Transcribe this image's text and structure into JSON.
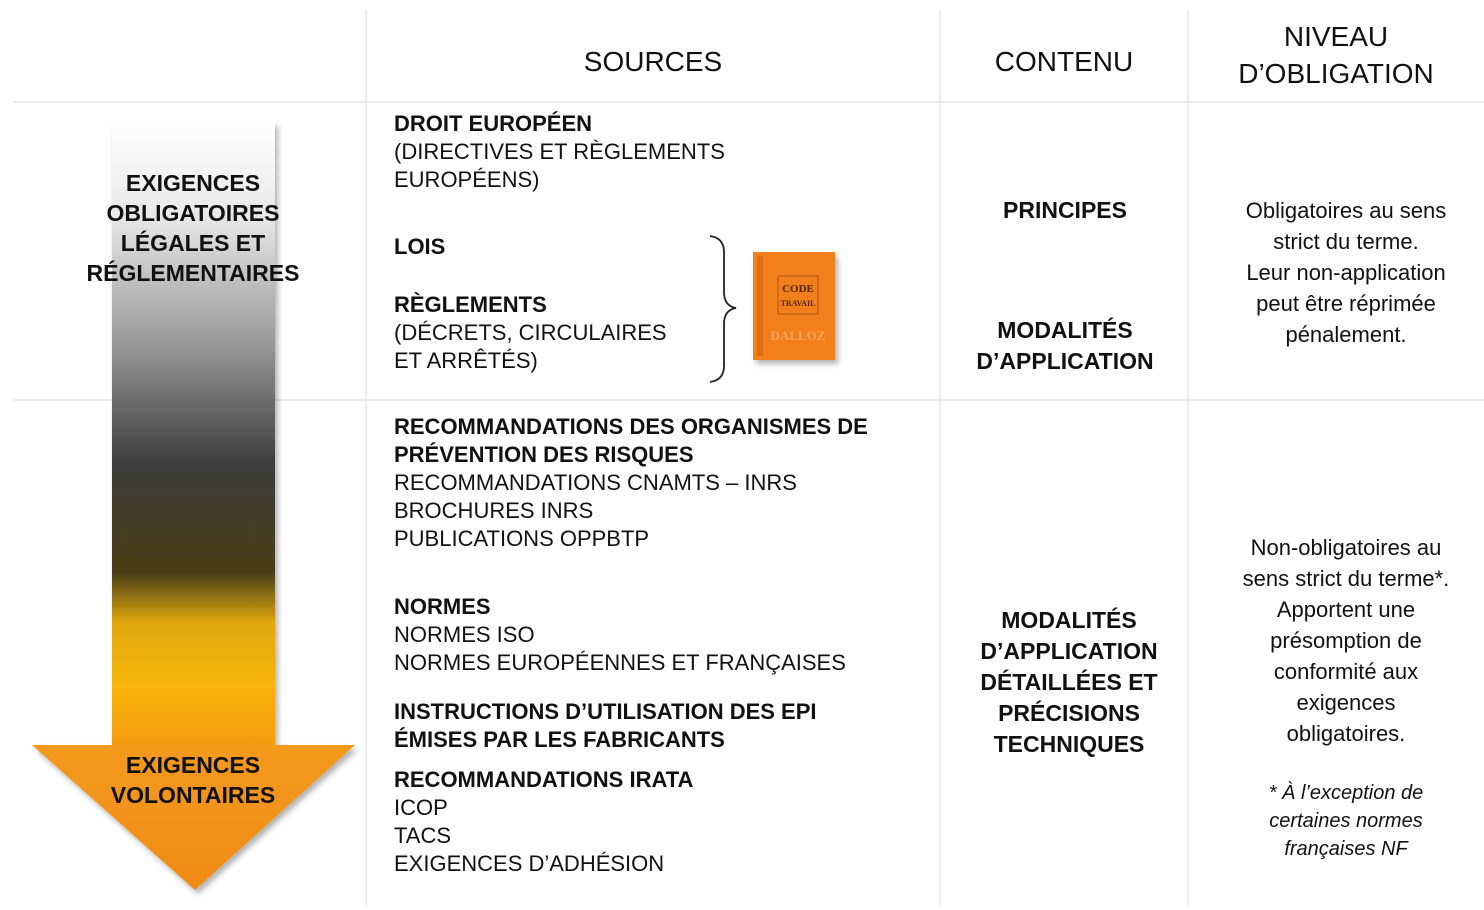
{
  "header": {
    "sources": "SOURCES",
    "contenu": "CONTENU",
    "niveau": [
      "NIVEAU",
      "D’OBLIGATION"
    ]
  },
  "arrow": {
    "top": [
      "EXIGENCES",
      "OBLIGATOIRES",
      "LÉGALES ET",
      "RÉGLEMENTAIRES"
    ],
    "bottom": [
      "EXIGENCES",
      "VOLONTAIRES"
    ]
  },
  "book": [
    "CODE",
    "TRAVAIL",
    "DALLOZ"
  ],
  "rows": [
    {
      "sources": [
        {
          "title": [
            "DROIT EUROPÉEN"
          ],
          "items": [
            "(DIRECTIVES ET RÈGLEMENTS",
            "EUROPÉENS)"
          ]
        },
        {
          "title": [
            "LOIS"
          ]
        },
        {
          "title": [
            "RÈGLEMENTS"
          ],
          "items": [
            "(DÉCRETS, CIRCULAIRES",
            "ET ARRÊTÉS)"
          ]
        }
      ],
      "contenu": [
        [
          "PRINCIPES"
        ],
        [
          "MODALITÉS",
          "D’APPLICATION"
        ]
      ],
      "niveau": [
        "Obligatoires au sens",
        "strict du terme.",
        "Leur non-application",
        "peut être réprimée",
        "pénalement."
      ]
    },
    {
      "sources": [
        {
          "title": [
            "RECOMMANDATIONS DES ORGANISMES DE",
            "PRÉVENTION DES RISQUES"
          ],
          "items": [
            "RECOMMANDATIONS CNAMTS – INRS",
            "BROCHURES INRS",
            "PUBLICATIONS OPPBTP"
          ]
        },
        {
          "title": [
            "NORMES"
          ],
          "items": [
            "NORMES ISO",
            "NORMES EUROPÉENNES ET FRANÇAISES"
          ]
        },
        {
          "title": [
            "INSTRUCTIONS D’UTILISATION DES EPI",
            "ÉMISES PAR LES FABRICANTS"
          ]
        },
        {
          "title": [
            "RECOMMANDATIONS IRATA"
          ],
          "items": [
            "ICOP",
            "TACS",
            "EXIGENCES D’ADHÉSION"
          ]
        }
      ],
      "contenu": [
        [
          "MODALITÉS",
          "D’APPLICATION",
          "DÉTAILLÉES ET",
          "PRÉCISIONS",
          "TECHNIQUES"
        ]
      ],
      "niveau": [
        "Non-obligatoires au",
        "sens strict du terme*.",
        "Apportent une",
        "présomption de",
        "conformité aux",
        "exigences",
        "obligatoires."
      ],
      "note": [
        "* À l’exception de",
        "certaines normes",
        "françaises NF"
      ]
    }
  ]
}
